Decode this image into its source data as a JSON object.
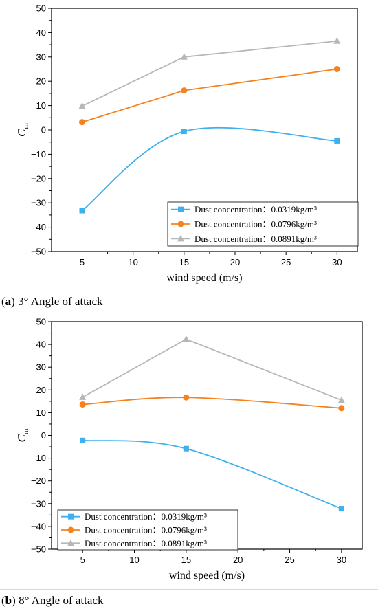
{
  "chart_data": [
    {
      "type": "line",
      "caption_letter": "a",
      "caption_text": "3° Angle of attack",
      "xlabel": "wind speed (m/s)",
      "ylabel_main": "C",
      "ylabel_sub": "m",
      "xlim": [
        2,
        32
      ],
      "ylim": [
        -50,
        50
      ],
      "xticks": [
        5,
        10,
        15,
        20,
        25,
        30
      ],
      "yticks": [
        -50,
        -40,
        -30,
        -20,
        -10,
        0,
        10,
        20,
        30,
        40,
        50
      ],
      "grid": false,
      "legend_position": "bottom-right",
      "x": [
        5,
        15,
        30
      ],
      "series": [
        {
          "name": "Dust concentration：0.0319kg/m³",
          "values": [
            -33.2,
            -0.6,
            -4.5
          ],
          "color": "#3fb0ee",
          "marker": "square",
          "smooth": true
        },
        {
          "name": "Dust concentration：0.0796kg/m³",
          "values": [
            3.2,
            16.2,
            25.0
          ],
          "color": "#f5821f",
          "marker": "circle",
          "smooth": false
        },
        {
          "name": "Dust concentration：0.0891kg/m³",
          "values": [
            9.8,
            30.0,
            36.5
          ],
          "color": "#b7b7b7",
          "marker": "triangle",
          "smooth": false
        }
      ]
    },
    {
      "type": "line",
      "caption_letter": "b",
      "caption_text": "8° Angle of attack",
      "xlabel": "wind speed (m/s)",
      "ylabel_main": "C",
      "ylabel_sub": "m",
      "xlim": [
        2,
        32
      ],
      "ylim": [
        -50,
        50
      ],
      "xticks": [
        5,
        10,
        15,
        20,
        25,
        30
      ],
      "yticks": [
        -50,
        -40,
        -30,
        -20,
        -10,
        0,
        10,
        20,
        30,
        40,
        50
      ],
      "grid": false,
      "legend_position": "bottom-left",
      "x": [
        5,
        15,
        30
      ],
      "series": [
        {
          "name": "Dust concentration：0.0319kg/m³",
          "values": [
            -2.2,
            -5.8,
            -32.2
          ],
          "color": "#3fb0ee",
          "marker": "square",
          "smooth": true
        },
        {
          "name": "Dust concentration：0.0796kg/m³",
          "values": [
            13.6,
            16.7,
            12.0
          ],
          "color": "#f5821f",
          "marker": "circle",
          "smooth": true
        },
        {
          "name": "Dust concentration：0.0891kg/m³",
          "values": [
            16.8,
            42.3,
            15.5
          ],
          "color": "#b7b7b7",
          "marker": "triangle",
          "smooth": false
        }
      ]
    }
  ]
}
